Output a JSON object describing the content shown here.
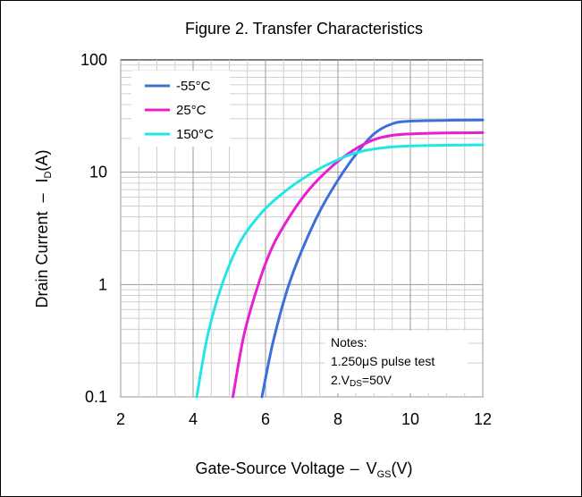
{
  "chart_data": {
    "type": "line",
    "title": "Figure 2. Transfer Characteristics",
    "xlabel": {
      "main": "Gate-Source Voltage",
      "dash": "–",
      "sym": "V",
      "sub": "GS",
      "unit": "(V)"
    },
    "ylabel": {
      "main": "Drain Current",
      "dash": "–",
      "sym": "I",
      "sub": "D",
      "unit": "(A)"
    },
    "x_scale": "linear",
    "y_scale": "log",
    "xlim": [
      2,
      12
    ],
    "ylim": [
      0.1,
      100
    ],
    "x_ticks": [
      2,
      4,
      6,
      8,
      10,
      12
    ],
    "y_ticks": [
      0.1,
      1,
      10,
      100
    ],
    "x_tick_labels": [
      "2",
      "4",
      "6",
      "8",
      "10",
      "12"
    ],
    "y_tick_labels": [
      "0.1",
      "1",
      "10",
      "100"
    ],
    "grid": true,
    "legend_position": "top-left",
    "series": [
      {
        "name": "-55°C",
        "color": "#3b6fd9",
        "x": [
          5.9,
          6.2,
          6.6,
          7.0,
          7.5,
          8.0,
          8.5,
          9.0,
          9.5,
          10.0,
          11.0,
          12.0
        ],
        "y": [
          0.1,
          0.3,
          0.9,
          2.0,
          4.5,
          8.5,
          14.5,
          22.0,
          27.0,
          28.5,
          29.0,
          29.2
        ]
      },
      {
        "name": "25°C",
        "color": "#e81ed1",
        "x": [
          5.1,
          5.4,
          5.8,
          6.2,
          6.7,
          7.2,
          7.8,
          8.4,
          9.0,
          9.6,
          10.5,
          12.0
        ],
        "y": [
          0.1,
          0.35,
          1.0,
          2.2,
          4.2,
          7.0,
          11.0,
          15.5,
          19.5,
          21.5,
          22.2,
          22.5
        ]
      },
      {
        "name": "150°C",
        "color": "#22e6e6",
        "x": [
          4.1,
          4.4,
          4.8,
          5.3,
          5.9,
          6.5,
          7.2,
          7.9,
          8.6,
          9.5,
          10.5,
          12.0
        ],
        "y": [
          0.1,
          0.35,
          1.0,
          2.4,
          4.4,
          6.6,
          9.5,
          12.5,
          15.2,
          16.8,
          17.3,
          17.5
        ]
      }
    ],
    "annotation": {
      "heading": "Notes:",
      "line1": "1.250μS pulse test",
      "line2_prefix": "2.V",
      "line2_sub": "DS",
      "line2_suffix": "=50V"
    }
  }
}
